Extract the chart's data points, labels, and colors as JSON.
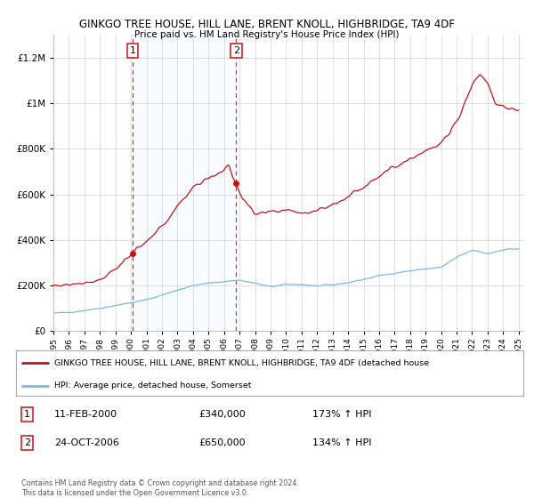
{
  "title": "GINKGO TREE HOUSE, HILL LANE, BRENT KNOLL, HIGHBRIDGE, TA9 4DF",
  "subtitle": "Price paid vs. HM Land Registry's House Price Index (HPI)",
  "sale1_date": "11-FEB-2000",
  "sale1_price": 340000,
  "sale1_year": 2000.1,
  "sale2_date": "24-OCT-2006",
  "sale2_price": 650000,
  "sale2_year": 2006.79,
  "legend_line1": "GINKGO TREE HOUSE, HILL LANE, BRENT KNOLL, HIGHBRIDGE, TA9 4DF (detached house",
  "legend_line2": "HPI: Average price, detached house, Somerset",
  "footnote1": "Contains HM Land Registry data © Crown copyright and database right 2024.",
  "footnote2": "This data is licensed under the Open Government Licence v3.0.",
  "hpi_color": "#7ab8e8",
  "price_color": "#cc1111",
  "bg_shade_color": "#ddeeff",
  "ylim_max": 1300000,
  "ylim_min": 0,
  "hpi_anchor_years": [
    1995,
    1996,
    1997,
    1998,
    1999,
    2000,
    2001,
    2002,
    2003,
    2004,
    2005,
    2006,
    2007,
    2008,
    2009,
    2010,
    2011,
    2012,
    2013,
    2014,
    2015,
    2016,
    2017,
    2018,
    2019,
    2020,
    2021,
    2022,
    2023,
    2024,
    2025
  ],
  "hpi_anchor_vals": [
    78000,
    83000,
    91000,
    101000,
    113000,
    124000,
    138000,
    158000,
    181000,
    200000,
    210000,
    218000,
    224000,
    210000,
    195000,
    205000,
    205000,
    198000,
    203000,
    213000,
    227000,
    243000,
    255000,
    265000,
    273000,
    280000,
    323000,
    355000,
    340000,
    358000,
    362000
  ],
  "prop_anchor_years": [
    1995,
    1996,
    1997,
    1998,
    1999,
    2000.1,
    2001,
    2002,
    2003,
    2004,
    2005,
    2006.3,
    2006.79,
    2007.2,
    2008,
    2009,
    2010,
    2011,
    2012,
    2013,
    2014,
    2015,
    2016,
    2017,
    2018,
    2019,
    2020,
    2021,
    2021.5,
    2022,
    2022.5,
    2023,
    2023.5,
    2024,
    2025
  ],
  "prop_anchor_vals": [
    200000,
    205000,
    215000,
    225000,
    275000,
    340000,
    390000,
    460000,
    545000,
    635000,
    670000,
    720000,
    650000,
    580000,
    510000,
    520000,
    535000,
    520000,
    530000,
    555000,
    590000,
    635000,
    685000,
    720000,
    760000,
    790000,
    820000,
    920000,
    1000000,
    1080000,
    1130000,
    1090000,
    1000000,
    990000,
    960000
  ]
}
